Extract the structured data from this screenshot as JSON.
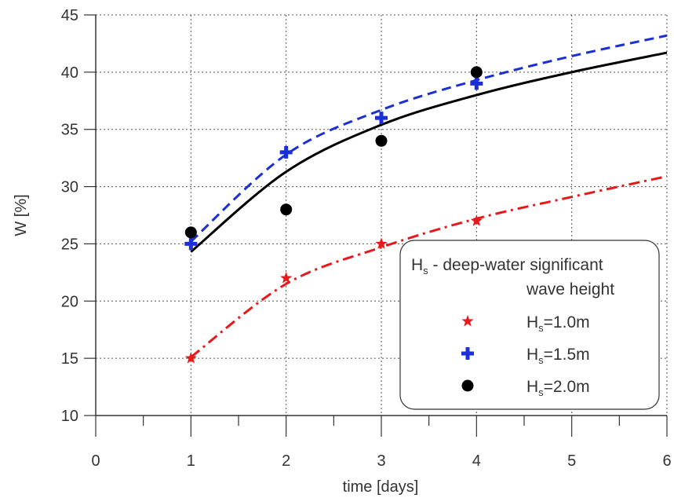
{
  "chart_data": {
    "type": "scatter",
    "xlabel": "time [days]",
    "ylabel": "W  [%]",
    "xlim": [
      0,
      6
    ],
    "ylim": [
      10,
      45
    ],
    "x_ticks": [
      "0",
      "1",
      "2",
      "3",
      "4",
      "5",
      "6"
    ],
    "y_ticks": [
      "10",
      "15",
      "20",
      "25",
      "30",
      "35",
      "40",
      "45"
    ],
    "grid": true,
    "legend_position": "bottom-right",
    "legend": {
      "title_main": "H",
      "title_sub": "s",
      "title_rest": " - deep-water  significant",
      "title_line2": "wave height",
      "entries": [
        {
          "main": "H",
          "sub": "s",
          "rest": "=1.0m"
        },
        {
          "main": "H",
          "sub": "s",
          "rest": "=1.5m"
        },
        {
          "main": "H",
          "sub": "s",
          "rest": "=2.0m"
        }
      ]
    },
    "series": [
      {
        "marker": "star",
        "color": "#e8191a",
        "line_style": "dash-dot",
        "x": [
          1,
          2,
          3,
          4
        ],
        "y": [
          15,
          22,
          25,
          27
        ],
        "fit": {
          "x": [
            1,
            2,
            3,
            4,
            5,
            6
          ],
          "y": [
            15.1,
            21.5,
            24.7,
            27.2,
            29.1,
            30.9
          ]
        }
      },
      {
        "marker": "plus",
        "color": "#1a2fd6",
        "line_style": "dashed",
        "x": [
          1,
          2,
          3,
          4
        ],
        "y": [
          25,
          33,
          36,
          39
        ],
        "fit": {
          "x": [
            1,
            2,
            3,
            4,
            5,
            6
          ],
          "y": [
            25.2,
            32.8,
            36.7,
            39.3,
            41.4,
            43.2
          ]
        }
      },
      {
        "marker": "circle",
        "color": "#000000",
        "line_style": "solid",
        "x": [
          1,
          2,
          3,
          4
        ],
        "y": [
          26,
          28,
          34,
          40
        ],
        "fit": {
          "x": [
            1,
            2,
            3,
            4,
            5,
            6
          ],
          "y": [
            24.3,
            31.3,
            35.4,
            38.0,
            40.0,
            41.7
          ]
        }
      }
    ]
  }
}
